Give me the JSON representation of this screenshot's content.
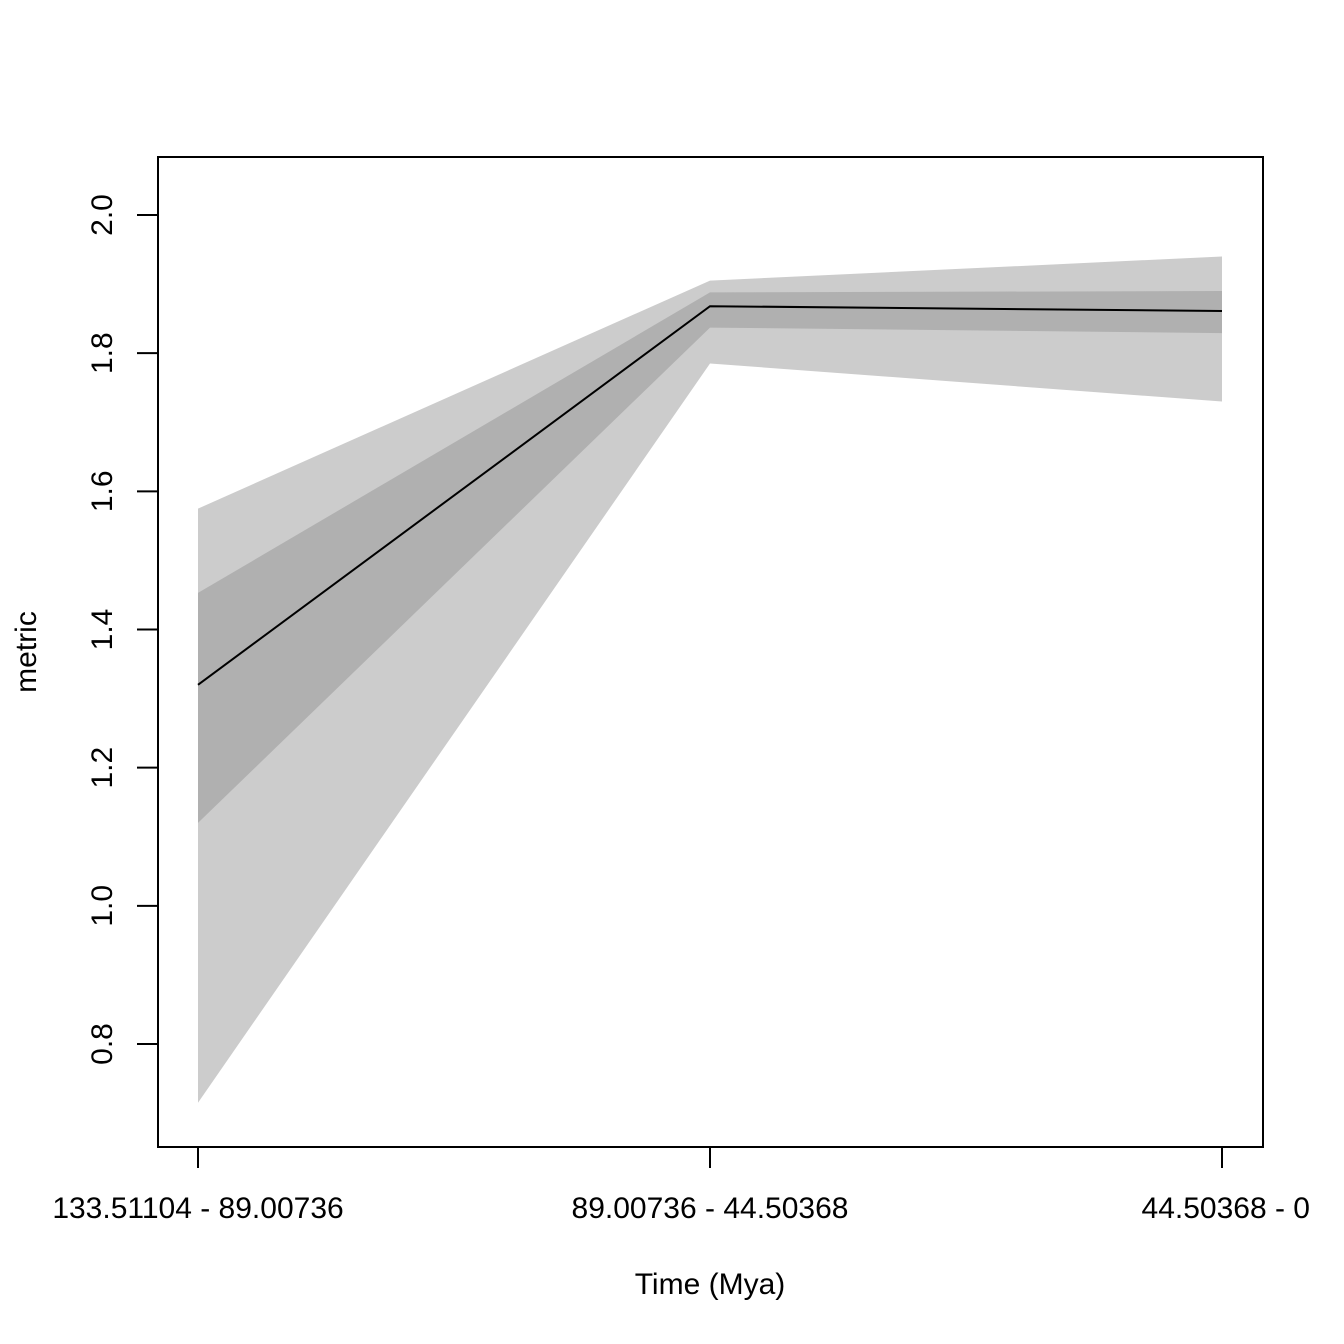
{
  "chart_data": {
    "type": "line",
    "title": "",
    "xlabel": "Time (Mya)",
    "ylabel": "metric",
    "categories": [
      "133.51104 - 89.00736",
      "89.00736 - 44.50368",
      "44.50368 - 0"
    ],
    "series": [
      {
        "values": [
          1.32,
          1.868,
          1.861
        ]
      }
    ],
    "bands": [
      {
        "role": "outer",
        "color": "#cccccc",
        "lower": [
          0.715,
          1.785,
          1.73
        ],
        "upper": [
          1.575,
          1.905,
          1.94
        ]
      },
      {
        "role": "inner",
        "color": "#b0b0b0",
        "lower": [
          1.12,
          1.837,
          1.829
        ],
        "upper": [
          1.453,
          1.888,
          1.89
        ]
      }
    ],
    "line_color": "#000000",
    "yticks": [
      0.8,
      1.0,
      1.2,
      1.4,
      1.6,
      1.8,
      2.0
    ],
    "ytick_labels": [
      "0.8",
      "1.0",
      "1.2",
      "1.4",
      "1.6",
      "1.8",
      "2.0"
    ],
    "ylim": [
      0.68,
      2.085
    ],
    "grid": false,
    "legend": "none"
  }
}
